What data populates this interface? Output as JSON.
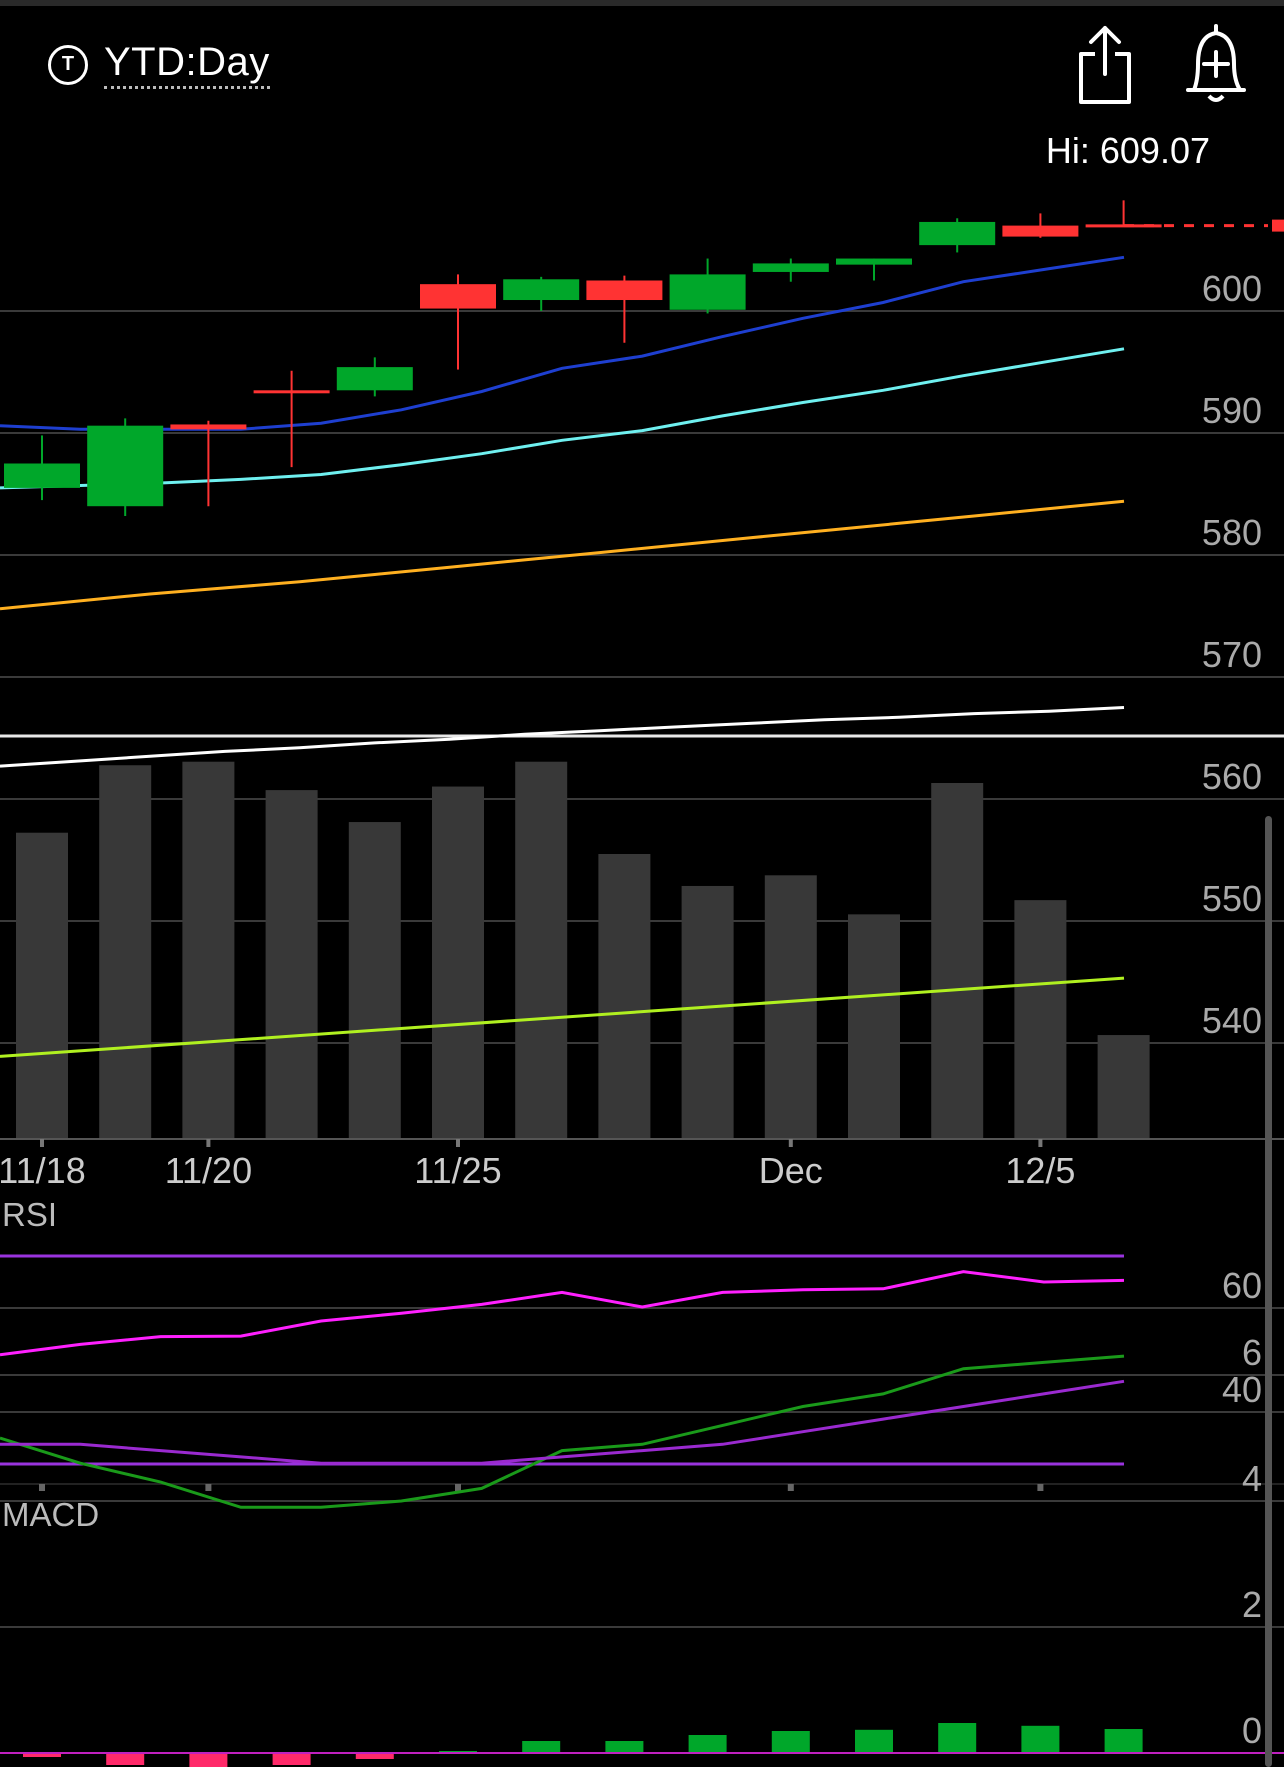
{
  "header": {
    "timeframe_icon": "T",
    "timeframe_label": "YTD:Day",
    "share_icon": "share-icon",
    "alert_icon": "add-alert-bell-icon",
    "hi_label": "Hi: 609.07"
  },
  "colors": {
    "up": "#00a72a",
    "down": "#ff3333",
    "ma_blue": "#1e3fd0",
    "ma_cyan": "#6ff0f0",
    "ma_orange": "#ffb020",
    "ma_white": "#ffffff",
    "vol_ma": "#b0f020",
    "rsi": "#ff20ff",
    "rsi_bands": "#9933dd",
    "macd_line": "#1a9a1a",
    "macd_signal": "#9a2ad0",
    "grid": "#3a3a3a"
  },
  "chart_data": [
    {
      "type": "candlestick",
      "title": "",
      "ylim": [
        530,
        612
      ],
      "y_ticks": [
        600,
        590,
        580,
        570,
        560,
        550,
        540
      ],
      "x_labels": [
        {
          "index": 0,
          "label": "11/18"
        },
        {
          "index": 2,
          "label": "11/20"
        },
        {
          "index": 5,
          "label": "11/25"
        },
        {
          "index": 9,
          "label": "Dec"
        },
        {
          "index": 12,
          "label": "12/5"
        }
      ],
      "candles": [
        {
          "o": 585.5,
          "h": 589.8,
          "l": 584.5,
          "c": 587.5
        },
        {
          "o": 584.0,
          "h": 591.2,
          "l": 583.2,
          "c": 590.6
        },
        {
          "o": 590.7,
          "h": 591.0,
          "l": 584.0,
          "c": 590.3
        },
        {
          "o": 593.5,
          "h": 595.1,
          "l": 587.2,
          "c": 593.3
        },
        {
          "o": 593.5,
          "h": 596.2,
          "l": 593.0,
          "c": 595.4
        },
        {
          "o": 602.2,
          "h": 603.0,
          "l": 595.2,
          "c": 600.2
        },
        {
          "o": 600.9,
          "h": 602.8,
          "l": 600.0,
          "c": 602.6
        },
        {
          "o": 602.5,
          "h": 602.9,
          "l": 597.4,
          "c": 600.9
        },
        {
          "o": 600.1,
          "h": 604.3,
          "l": 599.8,
          "c": 603.0
        },
        {
          "o": 603.2,
          "h": 604.3,
          "l": 602.4,
          "c": 603.9
        },
        {
          "o": 603.8,
          "h": 604.3,
          "l": 602.5,
          "c": 604.3
        },
        {
          "o": 605.4,
          "h": 607.6,
          "l": 604.8,
          "c": 607.3
        },
        {
          "o": 607.0,
          "h": 608.0,
          "l": 606.0,
          "c": 606.1
        },
        {
          "o": 607.1,
          "h": 609.07,
          "l": 607.0,
          "c": 607.0
        }
      ],
      "last_price": 607.0,
      "high": 609.07,
      "moving_averages": [
        {
          "color_key": "ma_blue",
          "values": [
            590.6,
            590.3,
            590.3,
            590.3,
            590.8,
            591.9,
            593.4,
            595.3,
            596.3,
            597.9,
            599.4,
            600.7,
            602.4,
            603.4,
            604.4
          ]
        },
        {
          "color_key": "ma_cyan",
          "values": [
            585.5,
            585.7,
            585.9,
            586.2,
            586.6,
            587.4,
            588.3,
            589.4,
            590.2,
            591.4,
            592.5,
            593.5,
            594.7,
            595.8,
            596.9
          ]
        },
        {
          "color_key": "ma_orange",
          "values": [
            575.6,
            576.2,
            576.8,
            577.3,
            577.8,
            578.4,
            579.0,
            579.6,
            580.2,
            580.8,
            581.4,
            582.0,
            582.6,
            583.2,
            583.8,
            584.4
          ]
        },
        {
          "color_key": "ma_white",
          "values": [
            562.7,
            563.1,
            563.5,
            563.9,
            564.2,
            564.6,
            564.9,
            565.3,
            565.6,
            565.9,
            566.2,
            566.5,
            566.7,
            567.0,
            567.2,
            567.5
          ]
        }
      ],
      "volume": {
        "values": [
          0.86,
          1.05,
          1.06,
          0.98,
          0.89,
          0.99,
          1.06,
          0.8,
          0.71,
          0.74,
          0.63,
          1.0,
          0.67,
          0.29
        ],
        "ma_start": 0.3,
        "ma_end": 0.55
      }
    },
    {
      "type": "line",
      "title": "RSI",
      "y_ticks": [
        60,
        40
      ],
      "ylim": [
        20,
        75
      ],
      "bands": [
        70,
        30
      ],
      "values": [
        51.0,
        53.0,
        54.5,
        54.6,
        57.5,
        59.0,
        60.7,
        63.0,
        60.2,
        63.0,
        63.5,
        63.7,
        67.0,
        65.0,
        65.3
      ]
    },
    {
      "type": "line+bar",
      "title": "MACD",
      "y_ticks": [
        6,
        4,
        2,
        0
      ],
      "ylim": [
        -0.4,
        7.2
      ],
      "macd": [
        5.0,
        4.6,
        4.3,
        3.9,
        3.9,
        4.0,
        4.2,
        4.8,
        4.9,
        5.2,
        5.5,
        5.7,
        6.1,
        6.2,
        6.3
      ],
      "signal": [
        4.9,
        4.9,
        4.8,
        4.7,
        4.6,
        4.6,
        4.6,
        4.7,
        4.8,
        4.9,
        5.1,
        5.3,
        5.5,
        5.7,
        5.9
      ],
      "histogram": [
        -0.1,
        -0.3,
        -0.4,
        -0.3,
        -0.15,
        0.05,
        0.3,
        0.3,
        0.45,
        0.55,
        0.58,
        0.75,
        0.68,
        0.6
      ]
    }
  ]
}
